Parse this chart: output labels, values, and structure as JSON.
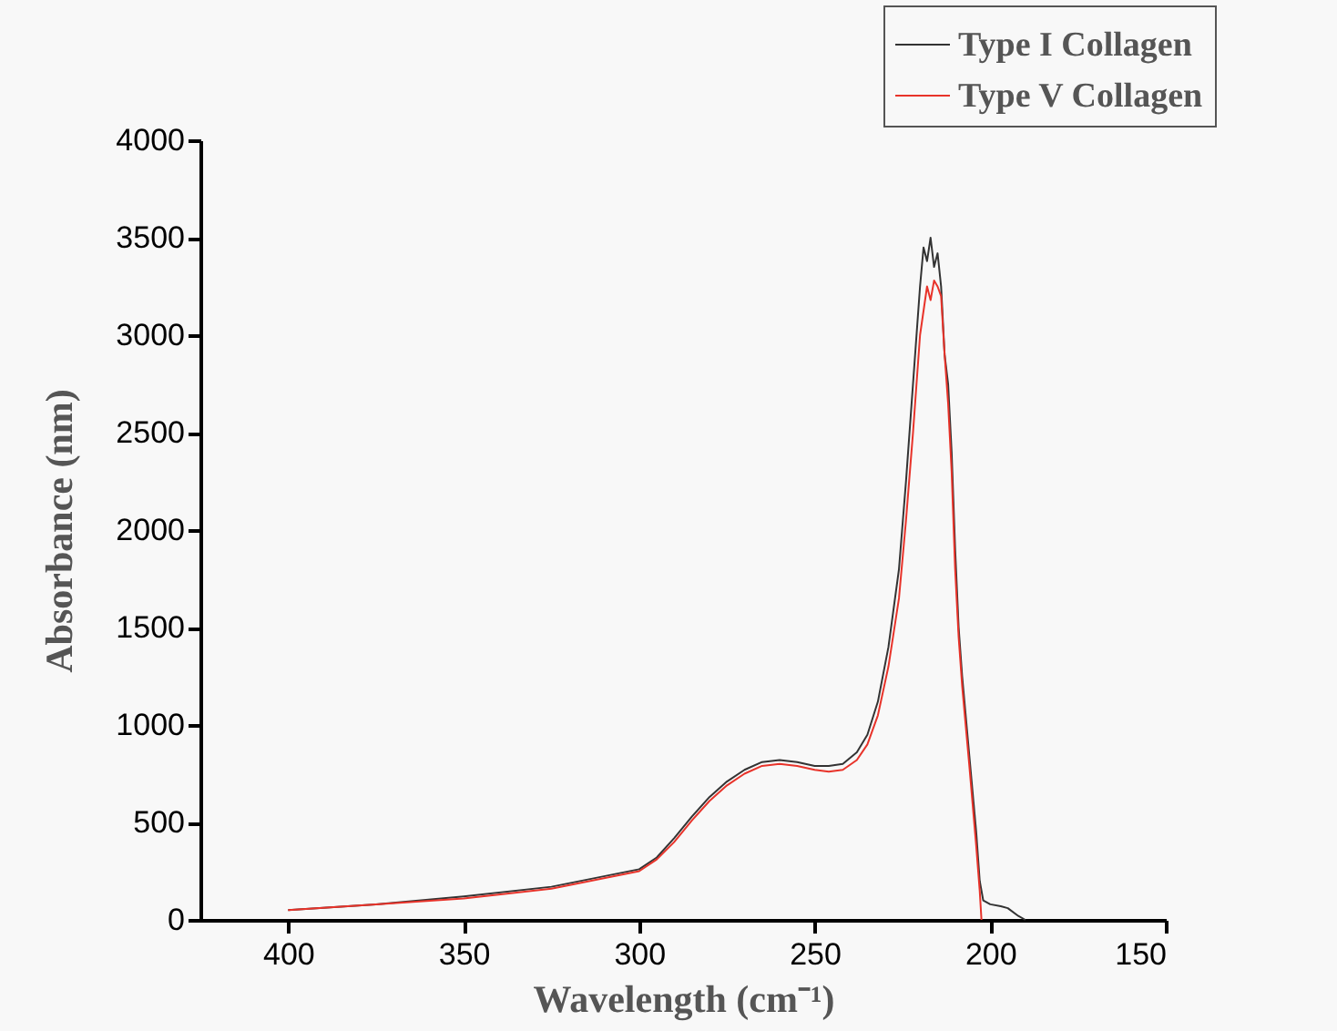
{
  "chart_data": {
    "type": "line",
    "xlabel": "Wavelength (cm⁻¹)",
    "ylabel": "Absorbance (nm)",
    "xlim": [
      425,
      150
    ],
    "xticks": [
      400,
      350,
      300,
      250,
      200,
      150
    ],
    "ylim": [
      0,
      4000
    ],
    "yticks": [
      0,
      500,
      1000,
      1500,
      2000,
      2500,
      3000,
      3500,
      4000
    ],
    "legend": "top right",
    "grid": false,
    "marker": "none",
    "line_style": "solid",
    "series": [
      {
        "name": "Type I Collagen",
        "color": "#333333",
        "x": [
          400,
          375,
          350,
          325,
          300,
          295,
          290,
          285,
          280,
          275,
          270,
          265,
          260,
          255,
          250,
          246,
          242,
          238,
          235,
          232,
          229,
          226,
          224,
          222,
          220,
          219,
          218,
          217,
          216,
          215,
          214,
          213,
          212,
          211,
          210,
          209,
          208,
          206,
          204,
          203,
          202,
          200,
          197,
          195,
          192,
          190
        ],
        "values": [
          50,
          80,
          120,
          170,
          260,
          320,
          420,
          530,
          630,
          710,
          770,
          810,
          820,
          810,
          790,
          790,
          800,
          860,
          950,
          1120,
          1400,
          1800,
          2250,
          2750,
          3250,
          3450,
          3380,
          3500,
          3350,
          3420,
          3250,
          2900,
          2750,
          2400,
          1900,
          1500,
          1250,
          850,
          450,
          200,
          100,
          80,
          70,
          60,
          20,
          0
        ]
      },
      {
        "name": "Type V Collagen",
        "color": "#e8332a",
        "x": [
          400,
          375,
          350,
          325,
          300,
          295,
          290,
          285,
          280,
          275,
          270,
          265,
          260,
          255,
          250,
          246,
          242,
          238,
          235,
          232,
          229,
          226,
          224,
          222,
          220,
          218,
          217,
          216,
          215,
          214,
          213,
          212,
          211,
          210,
          209,
          208,
          206,
          204,
          203,
          202.5
        ],
        "values": [
          50,
          80,
          110,
          160,
          250,
          310,
          400,
          510,
          610,
          690,
          750,
          790,
          800,
          790,
          770,
          760,
          770,
          820,
          900,
          1050,
          1300,
          1650,
          2050,
          2500,
          3000,
          3250,
          3180,
          3280,
          3250,
          3200,
          2900,
          2650,
          2300,
          1800,
          1450,
          1200,
          800,
          380,
          150,
          0
        ]
      }
    ]
  }
}
